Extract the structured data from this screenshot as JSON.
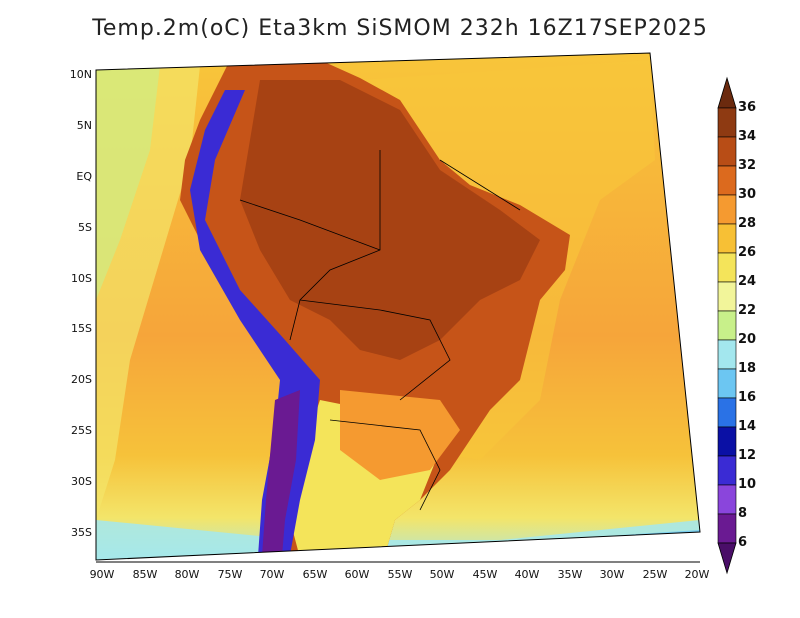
{
  "title": "Temp.2m(oC) Eta3km SiSMOM 232h 16Z17SEP2025",
  "lat_labels": [
    "10N",
    "5N",
    "EQ",
    "5S",
    "10S",
    "15S",
    "20S",
    "25S",
    "30S",
    "35S"
  ],
  "lon_labels": [
    "90W",
    "85W",
    "80W",
    "75W",
    "70W",
    "65W",
    "60W",
    "55W",
    "50W",
    "45W",
    "40W",
    "35W",
    "30W",
    "25W",
    "20W"
  ],
  "colorbar": {
    "labels": [
      "36",
      "34",
      "32",
      "30",
      "28",
      "26",
      "24",
      "22",
      "20",
      "18",
      "16",
      "14",
      "12",
      "10",
      "8",
      "6"
    ],
    "colors": [
      "#6b2a0e",
      "#8e3a12",
      "#b84d16",
      "#dc6a1e",
      "#f59a30",
      "#f7c035",
      "#f4e45a",
      "#f2f59a",
      "#c8f08a",
      "#a3e7ee",
      "#6cc6f2",
      "#2a72e6",
      "#0a10a5",
      "#3a2bd4",
      "#8a45dc",
      "#6a1a92",
      "#4a0e68"
    ]
  },
  "map_colors": {
    "ocean_warm": "#f6a53a",
    "ocean_mid": "#f8c63a",
    "ocean_cool": "#f3e56a",
    "ocean_cold": "#eef59c",
    "land_hot": "#c65418",
    "land_hotter": "#9c3c12",
    "andes_cold": "#3a2bd4",
    "andes_colder": "#6a1a92"
  }
}
